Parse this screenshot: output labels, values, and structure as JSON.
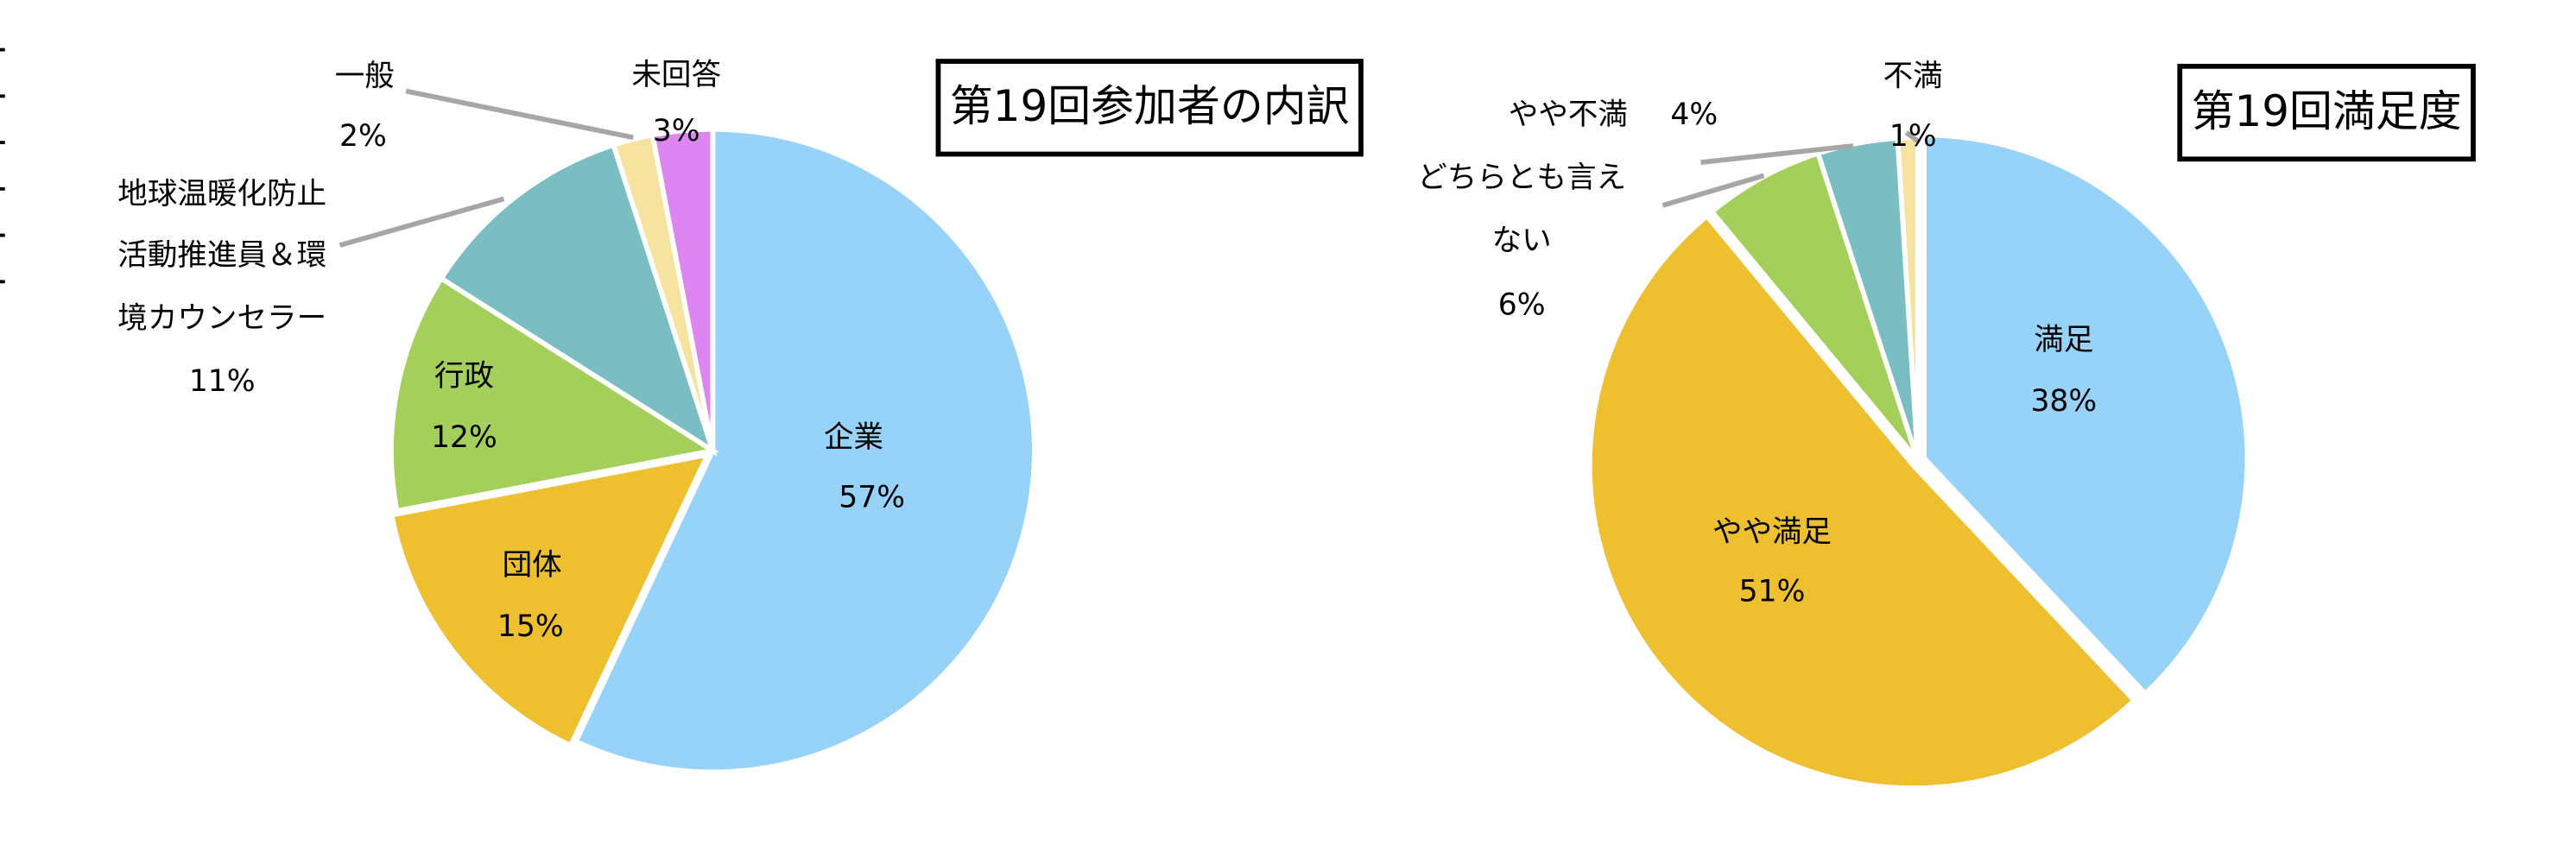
{
  "chart_data": [
    {
      "type": "pie",
      "title": "第19回参加者の内訳",
      "slices": [
        {
          "name": "企業",
          "value": 57,
          "label": "57%",
          "color": "#97d3f8"
        },
        {
          "name": "団体",
          "value": 15,
          "label": "15%",
          "color": "#eebf2f"
        },
        {
          "name": "行政",
          "value": 12,
          "label": "12%",
          "color": "#a5cf5b"
        },
        {
          "name": "地球温暖化防止活動推進員＆環境カウンセラー",
          "name_lines": [
            "地球温暖化防止",
            "活動推進員＆環",
            "境カウンセラー"
          ],
          "value": 11,
          "label": "11%",
          "color": "#7abdc3"
        },
        {
          "name": "一般",
          "value": 2,
          "label": "2%",
          "color": "#f6e3a0"
        },
        {
          "name": "未回答",
          "value": 3,
          "label": "3%",
          "color": "#dd85f0"
        }
      ]
    },
    {
      "type": "pie",
      "title": "第19回満足度",
      "slices": [
        {
          "name": "満足",
          "value": 38,
          "label": "38%",
          "color": "#97d3f8"
        },
        {
          "name": "やや満足",
          "value": 51,
          "label": "51%",
          "color": "#eebf2f"
        },
        {
          "name": "どちらとも言えない",
          "name_lines": [
            "どちらとも言え",
            "ない"
          ],
          "value": 6,
          "label": "6%",
          "color": "#a5cf5b"
        },
        {
          "name": "やや不満",
          "value": 4,
          "label": "4%",
          "color": "#7abdc3"
        },
        {
          "name": "不満",
          "value": 1,
          "label": "1%",
          "color": "#f6e3a0"
        }
      ]
    }
  ]
}
